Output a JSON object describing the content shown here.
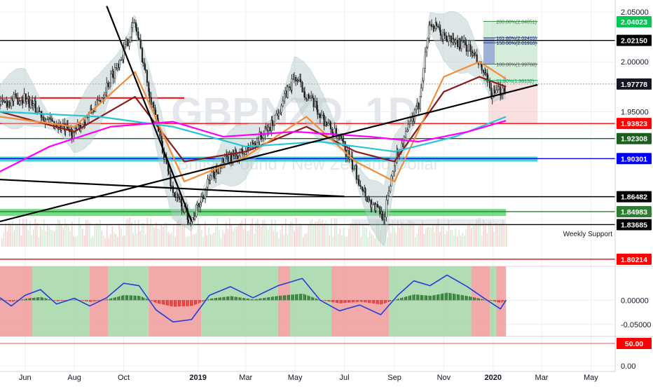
{
  "chart_data": {
    "type": "line",
    "title": "",
    "watermark": {
      "symbol": "GBPNZD",
      "interval": "1D",
      "description": "British Pound / New Zealand Dollar",
      "visible_symbol": "GBPNZD, 1D",
      "visible_description": "British Pound / New Zealand Dollar"
    },
    "grid": true,
    "x_axis": {
      "tick_labels": [
        "Jun",
        "Aug",
        "Oct",
        "2019",
        "Mar",
        "May",
        "Jul",
        "Sep",
        "Nov",
        "2020",
        "Mar",
        "May"
      ],
      "start": "2018-05-01",
      "end": "2020-05-31",
      "last_candle": "2020-01-17"
    },
    "price_axis": {
      "ylim": [
        1.795,
        2.062
      ],
      "tick_labels": [
        "2.05000",
        "2.00000",
        "1.95000"
      ]
    },
    "oscillator_axis": {
      "ylim": [
        -0.075,
        0.07
      ],
      "tick_labels": [
        "0.00000",
        "-0.05000"
      ]
    },
    "rsi_axis": {
      "tick_labels": [
        "50.00",
        "0.00"
      ]
    },
    "price_series": {
      "name": "GBPNZD",
      "x": [
        "2018-05-01",
        "2018-06-01",
        "2018-07-01",
        "2018-08-01",
        "2018-09-01",
        "2018-10-01",
        "2018-10-15",
        "2018-11-01",
        "2018-12-01",
        "2018-12-24",
        "2019-01-15",
        "2019-02-01",
        "2019-03-01",
        "2019-04-01",
        "2019-05-01",
        "2019-06-01",
        "2019-07-01",
        "2019-08-01",
        "2019-08-20",
        "2019-09-01",
        "2019-10-01",
        "2019-10-15",
        "2019-11-01",
        "2019-12-01",
        "2019-12-20",
        "2020-01-01",
        "2020-01-17"
      ],
      "y": [
        1.958,
        1.965,
        1.94,
        1.928,
        1.96,
        2.01,
        2.04,
        1.975,
        1.87,
        1.84,
        1.88,
        1.9,
        1.91,
        1.935,
        1.985,
        1.948,
        1.915,
        1.86,
        1.845,
        1.9,
        1.955,
        2.04,
        2.025,
        2.015,
        1.99,
        1.965,
        1.975
      ]
    },
    "moving_averages": [
      {
        "color": "#8b1a1a",
        "x": [
          "2018-05-01",
          "2018-08-01",
          "2018-10-15",
          "2018-12-15",
          "2019-03-01",
          "2019-05-15",
          "2019-07-15",
          "2019-09-01",
          "2019-11-01",
          "2019-12-15",
          "2020-01-17"
        ],
        "y": [
          1.95,
          1.93,
          1.965,
          1.9,
          1.91,
          1.935,
          1.91,
          1.9,
          1.97,
          1.985,
          1.975
        ]
      },
      {
        "color": "#f28c38",
        "x": [
          "2018-05-01",
          "2018-08-01",
          "2018-10-15",
          "2018-12-15",
          "2019-03-01",
          "2019-05-15",
          "2019-07-15",
          "2019-09-01",
          "2019-11-01",
          "2019-12-15",
          "2020-01-17"
        ],
        "y": [
          1.945,
          1.935,
          1.99,
          1.88,
          1.905,
          1.945,
          1.9,
          1.88,
          1.985,
          2.0,
          1.983
        ]
      },
      {
        "color": "#26c6da",
        "x": [
          "2018-05-01",
          "2018-09-01",
          "2018-12-01",
          "2019-03-01",
          "2019-06-01",
          "2019-09-01",
          "2019-11-15",
          "2020-01-17"
        ],
        "y": [
          1.95,
          1.945,
          1.935,
          1.915,
          1.92,
          1.91,
          1.925,
          1.945
        ]
      },
      {
        "color": "#ff00ff",
        "x": [
          "2018-05-01",
          "2018-07-01",
          "2018-09-15",
          "2018-12-01",
          "2019-02-01",
          "2019-05-01",
          "2019-08-01",
          "2019-10-01",
          "2019-12-01",
          "2020-01-17"
        ],
        "y": [
          1.89,
          1.915,
          1.935,
          1.94,
          1.925,
          1.93,
          1.925,
          1.92,
          1.93,
          1.941
        ]
      }
    ],
    "horizontal_levels": [
      {
        "y": 2.0215,
        "label": "2.02150",
        "color": "#000000",
        "label_bg": "#000000",
        "label_color": "#ffffff"
      },
      {
        "y": 1.97778,
        "label": "1.97778",
        "color": "#9e9e9e",
        "label_bg": "#131722",
        "label_color": "#ffffff"
      },
      {
        "y": 1.93823,
        "label": "1.93823",
        "color": "#ff0000",
        "label_bg": "#ff0000",
        "label_color": "#ffffff"
      },
      {
        "y": 1.92308,
        "label": "1.92308",
        "color": "#1b5e20",
        "label_bg": "#1b5e20",
        "label_color": "#ffffff"
      },
      {
        "y": 1.90301,
        "label": "1.90301",
        "color": "#0000ff",
        "label_bg": "#0000ff",
        "label_color": "#ffffff"
      },
      {
        "y": 1.86482,
        "label": "1.86482",
        "color": "#000000",
        "label_bg": "#000000",
        "label_color": "#ffffff"
      },
      {
        "y": 1.84983,
        "label": "1.84983",
        "color": "#2e7d32",
        "label_bg": "#2e7d32",
        "label_color": "#ffffff"
      },
      {
        "y": 1.83685,
        "label": "1.83685",
        "color": "#000000",
        "label_bg": "#000000",
        "label_color": "#ffffff"
      },
      {
        "y": 1.80214,
        "label": "1.80214",
        "color": "#ff0000",
        "label_bg": "#ff0000",
        "label_color": "#ffffff"
      }
    ],
    "top_badge": {
      "y": 2.04023,
      "label": "2.04023",
      "color": "#00c853"
    },
    "annotations": [
      "Weekly Support"
    ],
    "fib_labels": [
      "200.00%(2.04051)",
      "161.80%(2.02415)",
      "150.00%(2.01910)",
      "100.00%(1.99768)",
      "61.80%(1.98132)"
    ],
    "trendlines": [
      {
        "x": [
          "2018-05-01",
          "2020-02-25"
        ],
        "y": [
          1.84,
          1.977
        ]
      },
      {
        "x": [
          "2018-05-01",
          "2019-07-01"
        ],
        "y": [
          1.882,
          1.865
        ]
      },
      {
        "x": [
          "2018-09-10",
          "2018-12-24"
        ],
        "y": [
          2.056,
          1.84
        ]
      }
    ],
    "oscillator": {
      "x": [
        "2018-05-01",
        "2018-05-15",
        "2018-06-01",
        "2018-06-20",
        "2018-07-10",
        "2018-08-01",
        "2018-08-20",
        "2018-09-10",
        "2018-10-01",
        "2018-10-20",
        "2018-11-10",
        "2018-12-01",
        "2018-12-24",
        "2019-01-15",
        "2019-02-10",
        "2019-03-10",
        "2019-04-10",
        "2019-05-10",
        "2019-06-01",
        "2019-06-25",
        "2019-07-20",
        "2019-08-15",
        "2019-09-05",
        "2019-09-25",
        "2019-10-15",
        "2019-11-05",
        "2019-11-30",
        "2019-12-20",
        "2020-01-10",
        "2020-01-17"
      ],
      "y": [
        0.005,
        -0.012,
        0.01,
        0.022,
        -0.008,
        0.004,
        -0.012,
        0.005,
        0.035,
        0.03,
        -0.02,
        -0.045,
        -0.04,
        0.01,
        0.028,
        0.005,
        0.03,
        0.045,
        0.0,
        -0.022,
        -0.01,
        -0.03,
        0.01,
        0.04,
        0.03,
        0.052,
        0.028,
        0.005,
        -0.018,
        0.0
      ]
    },
    "oscillator_regions": [
      {
        "from": "2018-05-01",
        "to": "2018-06-10",
        "state": "bear"
      },
      {
        "from": "2018-06-10",
        "to": "2018-08-20",
        "state": "bull"
      },
      {
        "from": "2018-08-20",
        "to": "2018-09-12",
        "state": "bear"
      },
      {
        "from": "2018-09-12",
        "to": "2018-11-01",
        "state": "bull"
      },
      {
        "from": "2018-11-01",
        "to": "2019-01-05",
        "state": "bear"
      },
      {
        "from": "2019-01-05",
        "to": "2019-04-10",
        "state": "bull"
      },
      {
        "from": "2019-04-10",
        "to": "2019-04-25",
        "state": "bear"
      },
      {
        "from": "2019-04-25",
        "to": "2019-06-15",
        "state": "bull"
      },
      {
        "from": "2019-06-15",
        "to": "2019-08-25",
        "state": "bear"
      },
      {
        "from": "2019-08-25",
        "to": "2019-12-05",
        "state": "bull"
      },
      {
        "from": "2019-12-05",
        "to": "2019-12-28",
        "state": "bear"
      },
      {
        "from": "2019-12-28",
        "to": "2020-01-05",
        "state": "bull"
      },
      {
        "from": "2020-01-05",
        "to": "2020-01-17",
        "state": "bear"
      }
    ],
    "colors": {
      "up": "#26a69a",
      "down": "#ef5350",
      "bull_region": "#a5d6a7",
      "bear_region": "#ef9a9a",
      "oscillator_line": "#1e3fd8",
      "grid": "#eceff3",
      "axis_text": "#131722"
    }
  }
}
